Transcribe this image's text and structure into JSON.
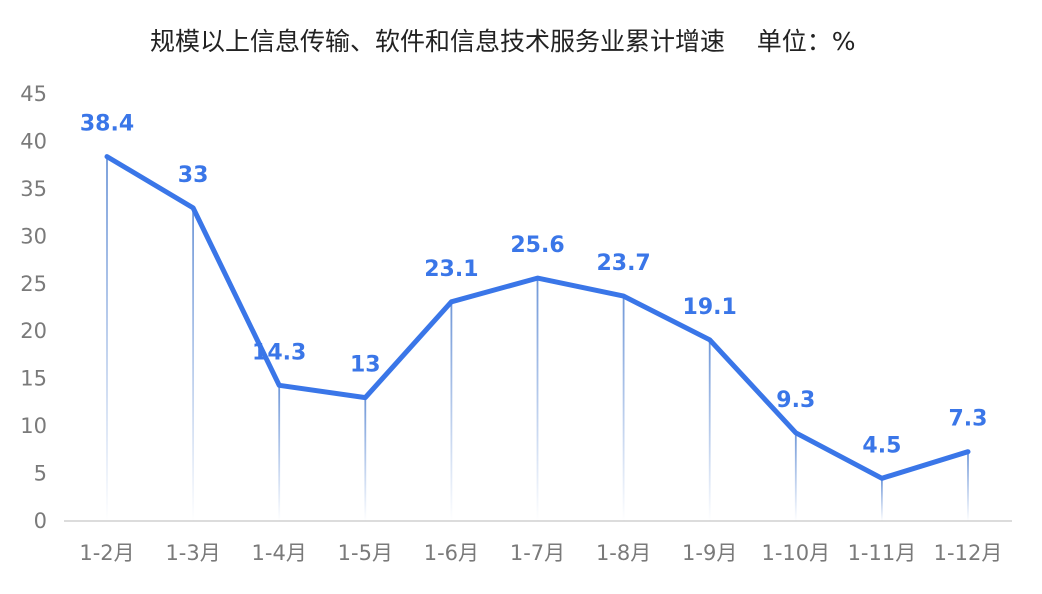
{
  "chart_data": {
    "type": "line",
    "title": "规模以上信息传输、软件和信息技术服务业累计增速    单位：%",
    "xlabel": "",
    "ylabel": "",
    "categories": [
      "1-2月",
      "1-3月",
      "1-4月",
      "1-5月",
      "1-6月",
      "1-7月",
      "1-8月",
      "1-9月",
      "1-10月",
      "1-11月",
      "1-12月"
    ],
    "series": [
      {
        "values": [
          38.4,
          33,
          14.3,
          13,
          23.1,
          25.6,
          23.7,
          19.1,
          9.3,
          4.5,
          7.3
        ],
        "color": "#3a76e8"
      }
    ],
    "ylim": [
      0,
      45
    ],
    "yticks": [
      "0",
      "5",
      "10",
      "15",
      "20",
      "25",
      "30",
      "35",
      "40",
      "45"
    ],
    "data_labels": [
      "38.4",
      "33",
      "14.3",
      "13",
      "23.1",
      "25.6",
      "23.7",
      "19.1",
      "9.3",
      "4.5",
      "7.3"
    ],
    "drop_lines": true,
    "grid": false,
    "legend": "none"
  }
}
